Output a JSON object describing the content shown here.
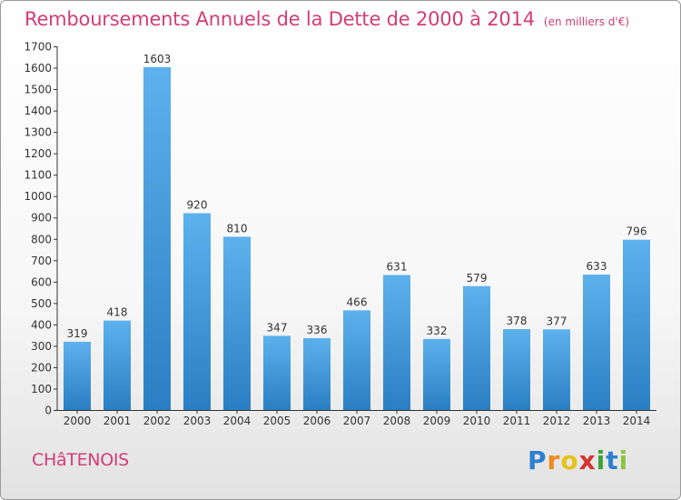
{
  "header": {
    "title": "Remboursements Annuels de la Dette de 2000 à 2014",
    "subtitle": "(en milliers d'€)"
  },
  "footer": {
    "city": "CHâTENOIS",
    "logo": "Proxiti"
  },
  "colors": {
    "title": "#d23d76",
    "bar_top": "#5db1ec",
    "bar_bottom": "#2a7fc4"
  },
  "chart_data": {
    "type": "bar",
    "title": "Remboursements Annuels de la Dette de 2000 à 2014",
    "subtitle": "(en milliers d'€)",
    "xlabel": "",
    "ylabel": "",
    "categories": [
      "2000",
      "2001",
      "2002",
      "2003",
      "2004",
      "2005",
      "2006",
      "2007",
      "2008",
      "2009",
      "2010",
      "2011",
      "2012",
      "2013",
      "2014"
    ],
    "values": [
      319,
      418,
      1603,
      920,
      810,
      347,
      336,
      466,
      631,
      332,
      579,
      378,
      377,
      633,
      796
    ],
    "ylim": [
      0,
      1700
    ],
    "yticks": [
      0,
      100,
      200,
      300,
      400,
      500,
      600,
      700,
      800,
      900,
      1000,
      1100,
      1200,
      1300,
      1400,
      1500,
      1600,
      1700
    ],
    "grid": false,
    "data_labels": true
  }
}
